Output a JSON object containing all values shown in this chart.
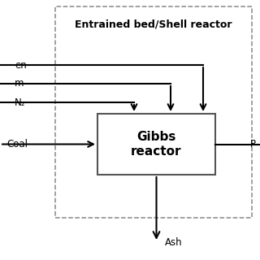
{
  "title": "Entrained bed/Shell reactor",
  "reactor_label": "Gibbs\nreactor",
  "label_en": "en",
  "label_m": "m",
  "label_n2": "N₂",
  "label_coal": "Coal",
  "label_ash": "Ash",
  "label_product": "P",
  "bg_color": "#ffffff",
  "reactor_edge_color": "#555555",
  "line_color": "#000000",
  "dash_color": "#888888",
  "text_color": "#000000",
  "title_fontsize": 9,
  "label_fontsize": 8.5,
  "reactor_fontsize": 11
}
